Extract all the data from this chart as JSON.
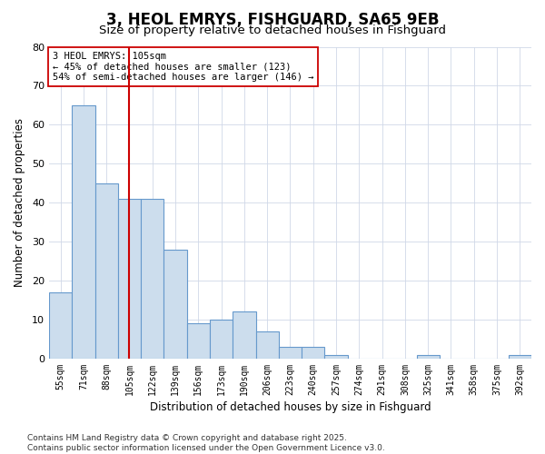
{
  "title": "3, HEOL EMRYS, FISHGUARD, SA65 9EB",
  "subtitle": "Size of property relative to detached houses in Fishguard",
  "xlabel": "Distribution of detached houses by size in Fishguard",
  "ylabel": "Number of detached properties",
  "categories": [
    "55sqm",
    "71sqm",
    "88sqm",
    "105sqm",
    "122sqm",
    "139sqm",
    "156sqm",
    "173sqm",
    "190sqm",
    "206sqm",
    "223sqm",
    "240sqm",
    "257sqm",
    "274sqm",
    "291sqm",
    "308sqm",
    "325sqm",
    "341sqm",
    "358sqm",
    "375sqm",
    "392sqm"
  ],
  "values": [
    17,
    65,
    45,
    41,
    41,
    28,
    9,
    10,
    12,
    7,
    3,
    3,
    1,
    0,
    0,
    0,
    1,
    0,
    0,
    0,
    1
  ],
  "bar_color": "#ccdded",
  "bar_edge_color": "#6699cc",
  "vline_x_idx": 3,
  "vline_color": "#cc0000",
  "annotation_text": "3 HEOL EMRYS: 105sqm\n← 45% of detached houses are smaller (123)\n54% of semi-detached houses are larger (146) →",
  "annotation_box_edgecolor": "#cc0000",
  "ylim": [
    0,
    80
  ],
  "yticks": [
    0,
    10,
    20,
    30,
    40,
    50,
    60,
    70,
    80
  ],
  "background_color": "#ffffff",
  "plot_bg_color": "#ffffff",
  "grid_color": "#d0d8e8",
  "footer": "Contains HM Land Registry data © Crown copyright and database right 2025.\nContains public sector information licensed under the Open Government Licence v3.0.",
  "title_fontsize": 12,
  "subtitle_fontsize": 9.5,
  "axis_label_fontsize": 8.5,
  "tick_fontsize": 7,
  "annotation_fontsize": 7.5,
  "footer_fontsize": 6.5
}
